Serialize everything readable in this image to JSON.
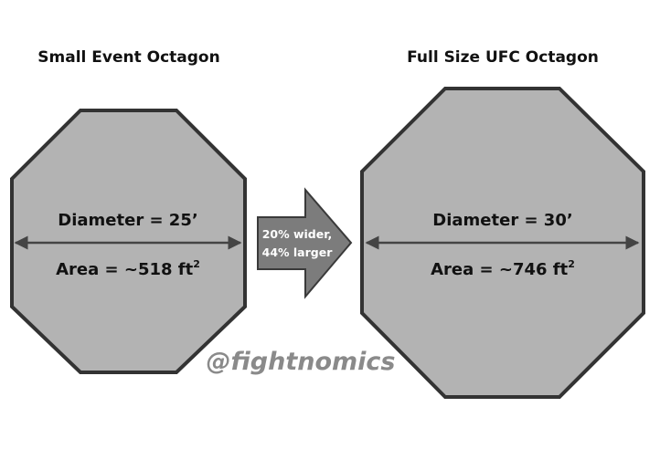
{
  "small": {
    "title": "Small Event Octagon",
    "diameter_label": "Diameter = 25’",
    "area_label": "Area = ~518 ft",
    "area_unit_exponent": "2"
  },
  "large": {
    "title": "Full Size UFC Octagon",
    "diameter_label": "Diameter = 30’",
    "area_label": "Area = ~746 ft",
    "area_unit_exponent": "2"
  },
  "comparison": {
    "line1": "20% wider,",
    "line2": "44% larger"
  },
  "watermark": "@fightnomics",
  "colors": {
    "octagon_fill": "#b3b3b3",
    "octagon_stroke": "#333333",
    "arrow_fill": "#7c7c7c",
    "arrow_stroke": "#3a3a3a",
    "measure_line": "#444444",
    "watermark": "#8a8a8a"
  }
}
